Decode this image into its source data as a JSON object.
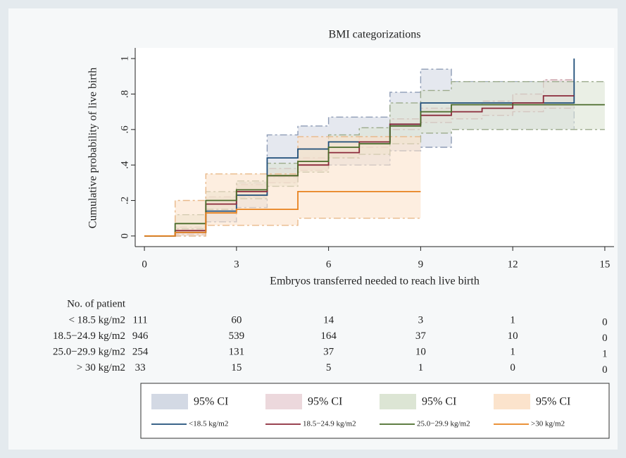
{
  "chart_data": {
    "type": "step",
    "title": "BMI categorizations",
    "x_label": "Embryos transferred needed to reach live birth",
    "y_label": "Cumulative probability of live birth",
    "x": [
      0,
      1,
      2,
      3,
      4,
      5,
      6,
      7,
      8,
      9,
      10,
      11,
      12,
      13,
      14,
      15
    ],
    "xlim": [
      -0.3,
      15.3
    ],
    "ylim": [
      -0.06,
      1.06
    ],
    "xticks": [
      0,
      3,
      6,
      9,
      12,
      15
    ],
    "yticks": [
      0,
      {
        "value": 0.2,
        "label": ".2"
      },
      {
        "value": 0.4,
        "label": ".4"
      },
      {
        "value": 0.6,
        "label": ".6"
      },
      {
        "value": 0.8,
        "label": ".8"
      },
      1
    ],
    "series": [
      {
        "name": "<18.5 kg/m2",
        "color": "#1f4e79",
        "values": [
          0,
          0.02,
          0.14,
          0.23,
          0.44,
          0.49,
          0.53,
          0.53,
          0.63,
          0.75,
          0.75,
          0.75,
          0.75,
          0.75,
          1.0,
          null
        ],
        "ci": {
          "name": "95% CI",
          "color": "#d3d9e4",
          "edge": "#8e9cb6",
          "upper": [
            0,
            0.05,
            0.2,
            0.3,
            0.57,
            0.62,
            0.67,
            0.67,
            0.81,
            0.94,
            0.87,
            0.87,
            0.87,
            0.87,
            1.0,
            null
          ],
          "lower": [
            0,
            0,
            0.08,
            0.16,
            0.33,
            0.37,
            0.4,
            0.4,
            0.48,
            0.5,
            0.6,
            0.6,
            0.6,
            0.6,
            1.0,
            null
          ]
        }
      },
      {
        "name": "18.5−24.9 kg/m2",
        "color": "#8b2a3a",
        "values": [
          0,
          0.03,
          0.18,
          0.25,
          0.34,
          0.4,
          0.47,
          0.53,
          0.63,
          0.68,
          0.7,
          0.72,
          0.75,
          0.79,
          0.79,
          null
        ],
        "ci": {
          "name": "95% CI",
          "color": "#ecd8dc",
          "edge": "#c79aa3",
          "upper": [
            0,
            0.05,
            0.22,
            0.29,
            0.38,
            0.44,
            0.5,
            0.56,
            0.66,
            0.72,
            0.74,
            0.76,
            0.8,
            0.88,
            0.88,
            null
          ],
          "lower": [
            0,
            0.01,
            0.15,
            0.22,
            0.3,
            0.37,
            0.44,
            0.5,
            0.6,
            0.64,
            0.66,
            0.68,
            0.7,
            0.72,
            0.72,
            null
          ]
        }
      },
      {
        "name": "25.0−29.9 kg/m2",
        "color": "#4a6b2a",
        "values": [
          0,
          0.07,
          0.2,
          0.26,
          0.34,
          0.42,
          0.5,
          0.52,
          0.62,
          0.7,
          0.74,
          0.74,
          0.74,
          0.74,
          0.74,
          0.74
        ],
        "ci": {
          "name": "95% CI",
          "color": "#dce5d4",
          "edge": "#9cab8c",
          "upper": [
            0,
            0.12,
            0.25,
            0.31,
            0.41,
            0.49,
            0.57,
            0.61,
            0.75,
            0.82,
            0.87,
            0.87,
            0.87,
            0.87,
            0.87,
            0.87
          ],
          "lower": [
            0,
            0.04,
            0.15,
            0.21,
            0.28,
            0.36,
            0.44,
            0.46,
            0.52,
            0.58,
            0.6,
            0.6,
            0.6,
            0.6,
            0.6,
            0.6
          ]
        }
      },
      {
        "name": ">30 kg/m2",
        "color": "#e8821e",
        "values": [
          0,
          0.02,
          0.13,
          0.15,
          0.15,
          0.25,
          0.25,
          0.25,
          0.25,
          0.25,
          null,
          null,
          null,
          null,
          null,
          null
        ],
        "ci": {
          "name": "95% CI",
          "color": "#fbe3cc",
          "edge": "#e9b98a",
          "upper": [
            0,
            0.2,
            0.35,
            0.35,
            0.35,
            0.56,
            0.56,
            0.56,
            0.56,
            0.56,
            null,
            null,
            null,
            null,
            null,
            null
          ],
          "lower": [
            0,
            0,
            0.06,
            0.06,
            0.06,
            0.1,
            0.1,
            0.1,
            0.1,
            0.1,
            null,
            null,
            null,
            null,
            null,
            null
          ]
        }
      }
    ],
    "risk_table": {
      "title": "No. of patient",
      "x": [
        0,
        3,
        6,
        9,
        12,
        15
      ],
      "rows": [
        {
          "label": "< 18.5 kg/m2",
          "values": [
            111,
            60,
            14,
            3,
            1,
            0
          ]
        },
        {
          "label": "18.5−24.9 kg/m2",
          "values": [
            946,
            539,
            164,
            37,
            10,
            0
          ]
        },
        {
          "label": "25.0−29.9 kg/m2",
          "values": [
            254,
            131,
            37,
            10,
            1,
            1
          ]
        },
        {
          "label": "> 30 kg/m2",
          "values": [
            33,
            15,
            5,
            1,
            0,
            0
          ]
        }
      ]
    }
  }
}
